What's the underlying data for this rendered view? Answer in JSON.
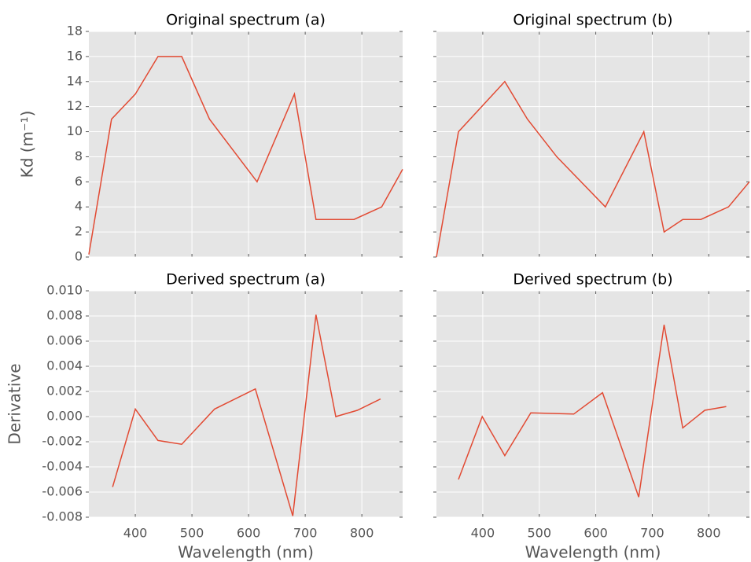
{
  "chart_data": [
    {
      "type": "line",
      "title": "Original spectrum (a)",
      "ylabel": "Kd (m⁻¹)",
      "color": "#e24a33",
      "grid": true,
      "x": [
        318,
        358,
        400,
        440,
        482,
        531,
        615,
        681,
        719,
        786,
        835,
        872
      ],
      "values": [
        0.2,
        11,
        13,
        16,
        16,
        11,
        6,
        13,
        3,
        3,
        4,
        7
      ],
      "xlim": [
        318,
        872
      ],
      "xticks": [
        400,
        500,
        600,
        700,
        800
      ],
      "show_xtick_labels": false,
      "ylim": [
        0,
        18
      ],
      "yticks": [
        0,
        2,
        4,
        6,
        8,
        10,
        12,
        14,
        16,
        18
      ],
      "show_ytick_labels": true
    },
    {
      "type": "line",
      "title": "Original spectrum (b)",
      "color": "#e24a33",
      "grid": true,
      "x": [
        318,
        357,
        439,
        479,
        531,
        617,
        685,
        721,
        754,
        786,
        835,
        872
      ],
      "values": [
        0,
        10,
        14,
        11,
        8,
        4,
        10,
        2,
        3,
        3,
        4,
        6
      ],
      "xlim": [
        318,
        872
      ],
      "xticks": [
        400,
        500,
        600,
        700,
        800
      ],
      "show_xtick_labels": false,
      "ylim": [
        0,
        18
      ],
      "yticks": [
        0,
        2,
        4,
        6,
        8,
        10,
        12,
        14,
        16,
        18
      ],
      "show_ytick_labels": false
    },
    {
      "type": "line",
      "title": "Derived spectrum (a)",
      "ylabel": "Derivative",
      "xlabel": "Wavelength (nm)",
      "color": "#e24a33",
      "grid": true,
      "x": [
        360,
        400,
        440,
        482,
        540,
        612,
        678,
        719,
        754,
        792,
        833
      ],
      "values": [
        -0.0056,
        0.0006,
        -0.0019,
        -0.0022,
        0.0006,
        0.0022,
        -0.0079,
        0.0081,
        0,
        0.0005,
        0.0014
      ],
      "xlim": [
        318,
        872
      ],
      "xticks": [
        400,
        500,
        600,
        700,
        800
      ],
      "show_xtick_labels": true,
      "ylim": [
        -0.008,
        0.01
      ],
      "yticks": [
        {
          "value": -0.008,
          "label": "-0.008"
        },
        {
          "value": -0.006,
          "label": "-0.006"
        },
        {
          "value": -0.004,
          "label": "-0.004"
        },
        {
          "value": -0.002,
          "label": "-0.002"
        },
        {
          "value": 0,
          "label": "0.000"
        },
        {
          "value": 0.002,
          "label": "0.002"
        },
        {
          "value": 0.004,
          "label": "0.004"
        },
        {
          "value": 0.006,
          "label": "0.006"
        },
        {
          "value": 0.008,
          "label": "0.008"
        },
        {
          "value": 0.01,
          "label": "0.010"
        }
      ],
      "show_ytick_labels": true
    },
    {
      "type": "line",
      "title": "Derived spectrum (b)",
      "xlabel": "Wavelength (nm)",
      "color": "#e24a33",
      "grid": true,
      "x": [
        357,
        399,
        439,
        485,
        561,
        612,
        676,
        721,
        754,
        793,
        831
      ],
      "values": [
        -0.005,
        0,
        -0.0031,
        0.0003,
        0.0002,
        0.0019,
        -0.0064,
        0.0073,
        -0.0009,
        0.0005,
        0.0008
      ],
      "xlim": [
        318,
        872
      ],
      "xticks": [
        400,
        500,
        600,
        700,
        800
      ],
      "show_xtick_labels": true,
      "ylim": [
        -0.008,
        0.01
      ],
      "yticks": [
        -0.008,
        -0.006,
        -0.004,
        -0.002,
        0,
        0.002,
        0.004,
        0.006,
        0.008,
        0.01
      ],
      "show_ytick_labels": false
    }
  ]
}
